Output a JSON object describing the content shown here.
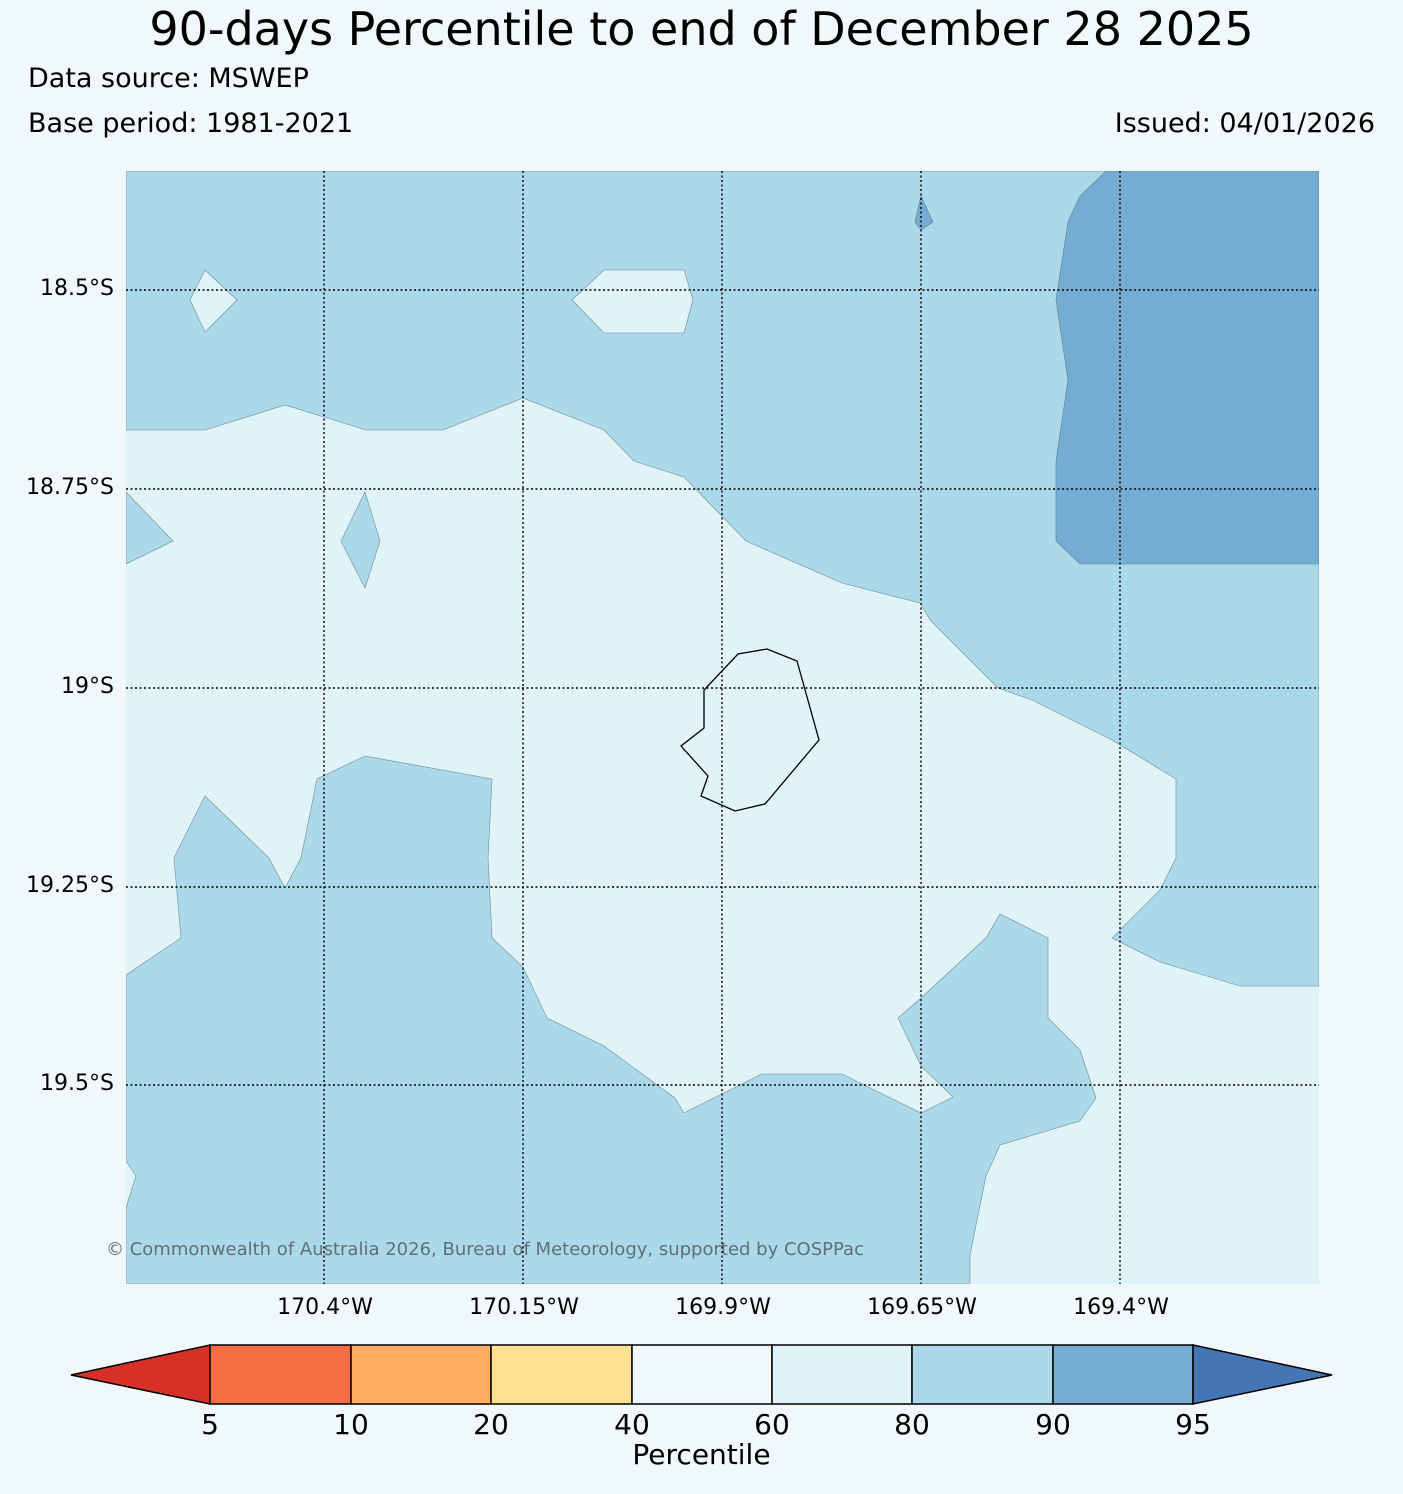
{
  "header": {
    "title": "90-days Percentile to end of December 28 2025",
    "data_source": "Data source: MSWEP",
    "base_period": "Base period: 1981-2021",
    "issued": "Issued: 04/01/2026"
  },
  "map": {
    "lat_labels": [
      "18.5°S",
      "18.75°S",
      "19°S",
      "19.25°S",
      "19.5°S"
    ],
    "lon_labels": [
      "170.4°W",
      "170.15°W",
      "169.9°W",
      "169.65°W",
      "169.4°W"
    ],
    "copyright": "© Commonwealth of Australia 2026, Bureau of Meteorology, supported by COSPPac",
    "region_colors": {
      "60-80": "#e0f3f8",
      "80-90": "#abd9e9",
      "90-95": "#74add1"
    }
  },
  "colorbar": {
    "ticks": [
      "5",
      "10",
      "20",
      "40",
      "60",
      "80",
      "90",
      "95"
    ],
    "label": "Percentile",
    "colors": [
      "#d73027",
      "#f46d43",
      "#fdae61",
      "#fee090",
      "#f1f8fa",
      "#e0f3f8",
      "#abd9e9",
      "#74add1",
      "#4575b4"
    ]
  }
}
